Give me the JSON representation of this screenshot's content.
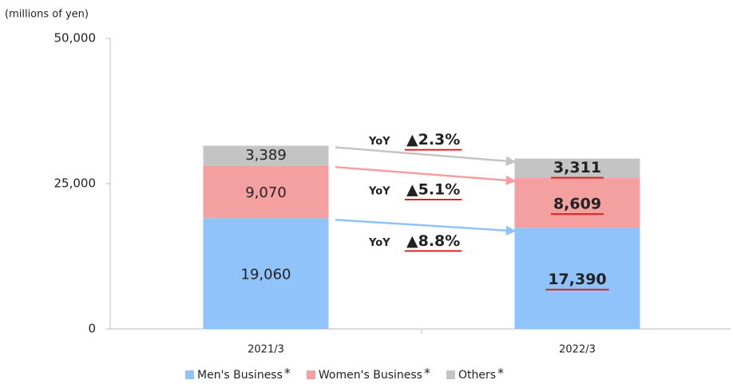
{
  "chart_data": {
    "type": "stacked_bar",
    "y_label": "(millions of yen)",
    "categories": [
      "2021/3",
      "2022/3"
    ],
    "series": [
      {
        "name": "Men's Business",
        "legend_mark": "*",
        "color": "#8fc3fa",
        "values": [
          19060,
          17390
        ],
        "value_labels": [
          "19,060",
          "17,390"
        ]
      },
      {
        "name": "Women's Business",
        "legend_mark": "*",
        "color": "#f5a0a0",
        "values": [
          9070,
          8609
        ],
        "value_labels": [
          "9,070",
          "8,609"
        ]
      },
      {
        "name": "Others",
        "legend_mark": "*",
        "color": "#c4c4c4",
        "values": [
          3389,
          3311
        ],
        "value_labels": [
          "3,389",
          "3,311"
        ]
      }
    ],
    "ylim": [
      0,
      50000
    ],
    "yticks": [
      0,
      {
        "value": 25000,
        "label": "25,000"
      },
      {
        "value": 50000,
        "label": "50,000"
      }
    ],
    "annotations": [
      {
        "prefix": "YoY",
        "label": "▲8.8%",
        "color": "#1a70c8"
      },
      {
        "prefix": "YoY",
        "label": "▲5.1%",
        "color": "#f06a6a"
      },
      {
        "prefix": "YoY",
        "label": "▲2.3%",
        "color": "#8c8c8c"
      }
    ]
  }
}
